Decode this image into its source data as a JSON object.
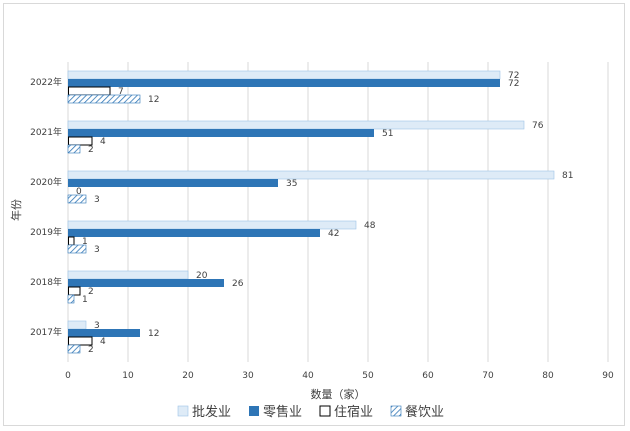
{
  "chart_data": {
    "type": "bar",
    "orientation": "horizontal",
    "title": "",
    "xlabel": "数量（家）",
    "ylabel": "年份",
    "xlim": [
      0,
      90
    ],
    "xticks": [
      0,
      10,
      20,
      30,
      40,
      50,
      60,
      70,
      80,
      90
    ],
    "grid": "vertical",
    "legend_position": "bottom",
    "categories": [
      "2022年",
      "2021年",
      "2020年",
      "2019年",
      "2018年",
      "2017年"
    ],
    "series": [
      {
        "name": "批发业",
        "color": "#deebf7",
        "style": "solid-light",
        "values": [
          72,
          76,
          81,
          48,
          20,
          3
        ]
      },
      {
        "name": "零售业",
        "color": "#2e75b6",
        "style": "solid",
        "values": [
          72,
          51,
          35,
          42,
          26,
          12
        ]
      },
      {
        "name": "住宿业",
        "color": "#000000",
        "style": "outline",
        "values": [
          7,
          4,
          0,
          1,
          2,
          4
        ]
      },
      {
        "name": "餐饮业",
        "color": "#2e75b6",
        "style": "hatch",
        "values": [
          12,
          2,
          3,
          3,
          1,
          2
        ]
      }
    ]
  }
}
